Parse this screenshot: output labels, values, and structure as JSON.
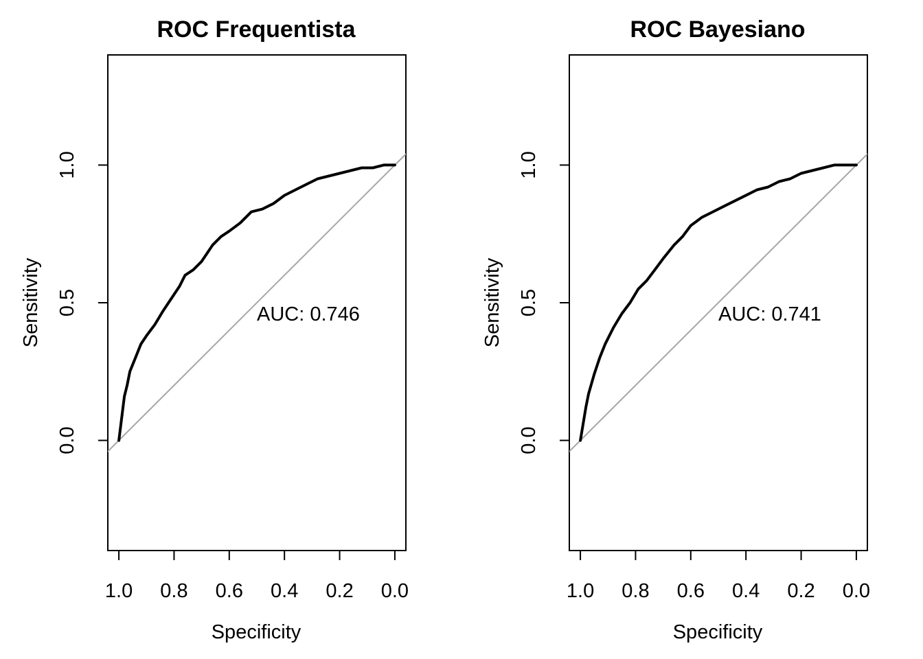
{
  "chart_data": [
    {
      "type": "line",
      "title": "ROC Frequentista",
      "xlabel": "Specificity",
      "ylabel": "Sensitivity",
      "x_reversed": true,
      "xlim": [
        1.04,
        -0.04
      ],
      "ylim": [
        -0.4,
        1.4
      ],
      "xticks": [
        1.0,
        0.8,
        0.6,
        0.4,
        0.2,
        0.0
      ],
      "xtick_labels": [
        "1.0",
        "0.8",
        "0.6",
        "0.4",
        "0.2",
        "0.0"
      ],
      "yticks": [
        0.0,
        0.5,
        1.0
      ],
      "ytick_labels": [
        "0.0",
        "0.5",
        "1.0"
      ],
      "annotation": {
        "text": "AUC: 0.746",
        "x": 0.3,
        "y": 0.46
      },
      "reference_line": {
        "from": [
          1.0,
          0.0
        ],
        "to": [
          0.0,
          1.0
        ],
        "color": "#a6a6a6"
      },
      "series": [
        {
          "x": [
            1.0,
            0.99,
            0.98,
            0.97,
            0.96,
            0.94,
            0.92,
            0.9,
            0.87,
            0.84,
            0.8,
            0.78,
            0.76,
            0.73,
            0.7,
            0.68,
            0.66,
            0.63,
            0.6,
            0.56,
            0.52,
            0.48,
            0.44,
            0.4,
            0.36,
            0.32,
            0.28,
            0.24,
            0.2,
            0.16,
            0.12,
            0.08,
            0.04,
            0.0
          ],
          "y": [
            0.0,
            0.08,
            0.16,
            0.2,
            0.25,
            0.3,
            0.35,
            0.38,
            0.42,
            0.47,
            0.53,
            0.56,
            0.6,
            0.62,
            0.65,
            0.68,
            0.71,
            0.74,
            0.76,
            0.79,
            0.83,
            0.84,
            0.86,
            0.89,
            0.91,
            0.93,
            0.95,
            0.96,
            0.97,
            0.98,
            0.99,
            0.99,
            1.0,
            1.0
          ],
          "color": "#000000"
        }
      ]
    },
    {
      "type": "line",
      "title": "ROC Bayesiano",
      "xlabel": "Specificity",
      "ylabel": "Sensitivity",
      "x_reversed": true,
      "xlim": [
        1.04,
        -0.04
      ],
      "ylim": [
        -0.4,
        1.4
      ],
      "xticks": [
        1.0,
        0.8,
        0.6,
        0.4,
        0.2,
        0.0
      ],
      "xtick_labels": [
        "1.0",
        "0.8",
        "0.6",
        "0.4",
        "0.2",
        "0.0"
      ],
      "yticks": [
        0.0,
        0.5,
        1.0
      ],
      "ytick_labels": [
        "0.0",
        "0.5",
        "1.0"
      ],
      "annotation": {
        "text": "AUC: 0.741",
        "x": 0.3,
        "y": 0.46
      },
      "reference_line": {
        "from": [
          1.0,
          0.0
        ],
        "to": [
          0.0,
          1.0
        ],
        "color": "#a6a6a6"
      },
      "series": [
        {
          "x": [
            1.0,
            0.99,
            0.98,
            0.97,
            0.95,
            0.93,
            0.91,
            0.88,
            0.85,
            0.82,
            0.79,
            0.76,
            0.73,
            0.7,
            0.66,
            0.63,
            0.6,
            0.56,
            0.52,
            0.48,
            0.44,
            0.4,
            0.36,
            0.32,
            0.28,
            0.24,
            0.2,
            0.16,
            0.12,
            0.08,
            0.04,
            0.0
          ],
          "y": [
            0.0,
            0.06,
            0.12,
            0.17,
            0.24,
            0.3,
            0.35,
            0.41,
            0.46,
            0.5,
            0.55,
            0.58,
            0.62,
            0.66,
            0.71,
            0.74,
            0.78,
            0.81,
            0.83,
            0.85,
            0.87,
            0.89,
            0.91,
            0.92,
            0.94,
            0.95,
            0.97,
            0.98,
            0.99,
            1.0,
            1.0,
            1.0
          ],
          "color": "#000000"
        }
      ]
    }
  ]
}
